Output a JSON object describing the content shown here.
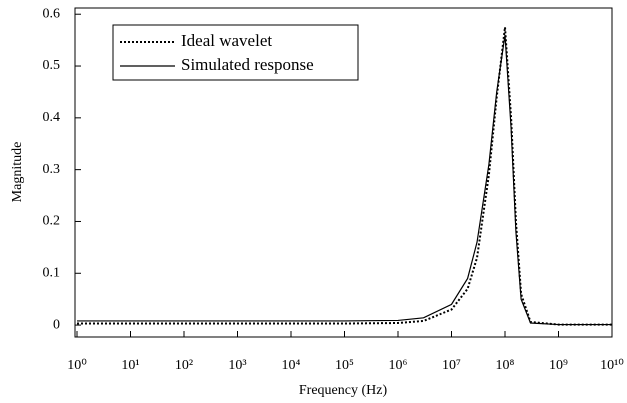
{
  "chart_data": {
    "type": "line",
    "x_label": "Frequency (Hz)",
    "y_label": "Magnitude",
    "x": [
      1,
      10,
      100,
      1000,
      10000,
      100000,
      1000000,
      3000000,
      10000000,
      20000000,
      30000000,
      50000000,
      70000000,
      100000000,
      130000000,
      160000000,
      200000000,
      300000000,
      1000000000,
      10000000000
    ],
    "series": [
      {
        "name": "Ideal wavelet",
        "color": "#000000",
        "dash": "dotted",
        "values": [
          0.003,
          0.003,
          0.003,
          0.003,
          0.003,
          0.003,
          0.004,
          0.008,
          0.03,
          0.07,
          0.13,
          0.29,
          0.44,
          0.575,
          0.4,
          0.2,
          0.06,
          0.006,
          0.001,
          0.001
        ]
      },
      {
        "name": "Simulated response",
        "color": "#000000",
        "dash": "solid",
        "values": [
          0.008,
          0.008,
          0.008,
          0.008,
          0.008,
          0.008,
          0.009,
          0.014,
          0.04,
          0.09,
          0.16,
          0.31,
          0.45,
          0.56,
          0.38,
          0.18,
          0.05,
          0.004,
          0.001,
          0.001
        ]
      }
    ],
    "xlog": true,
    "xlim": [
      1,
      10000000000
    ],
    "xticks": [
      {
        "value": 1,
        "label": "10⁰"
      },
      {
        "value": 10,
        "label": "10¹"
      },
      {
        "value": 100,
        "label": "10²"
      },
      {
        "value": 1000,
        "label": "10³"
      },
      {
        "value": 10000,
        "label": "10⁴"
      },
      {
        "value": 100000,
        "label": "10⁵"
      },
      {
        "value": 1000000,
        "label": "10⁶"
      },
      {
        "value": 10000000,
        "label": "10⁷"
      },
      {
        "value": 100000000,
        "label": "10⁸"
      },
      {
        "value": 1000000000,
        "label": "10⁹"
      },
      {
        "value": 10000000000,
        "label": "10¹⁰"
      }
    ],
    "ylim": [
      -0.023,
      0.612
    ],
    "yticks": [
      0,
      0.1,
      0.2,
      0.3,
      0.4,
      0.5,
      0.6
    ],
    "legend": "upper-left"
  }
}
